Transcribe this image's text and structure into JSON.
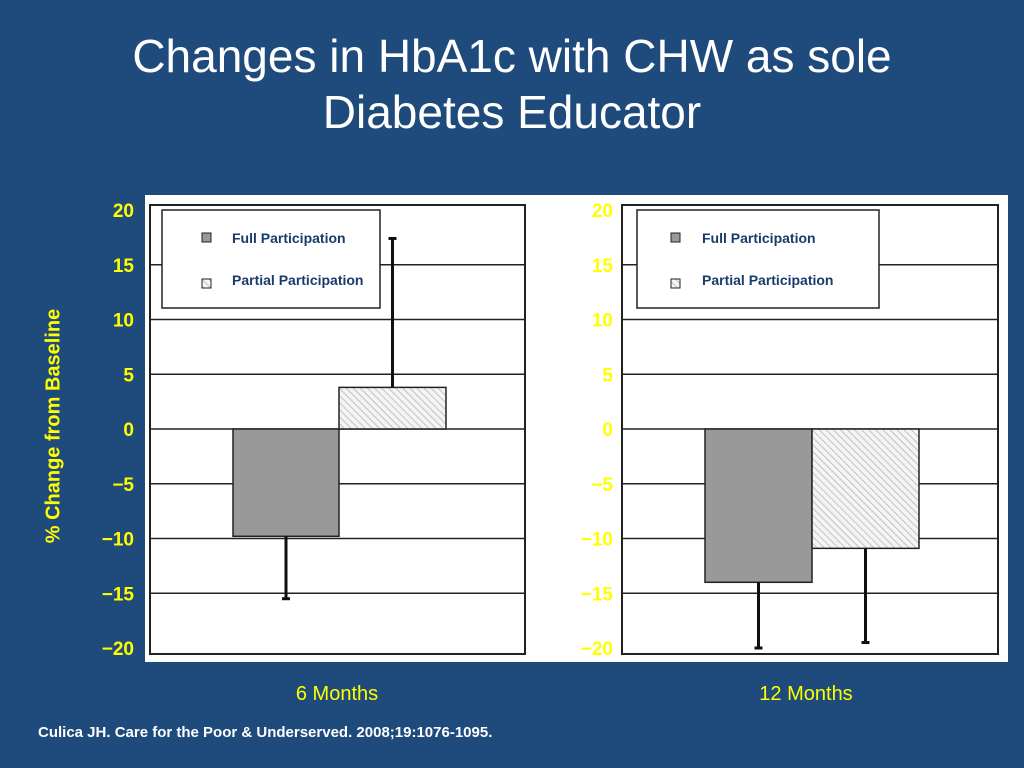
{
  "title_line1": "Changes in HbA1c with CHW as sole",
  "title_line2": "Diabetes Educator",
  "y_axis_label": "% Change from Baseline",
  "citation": "Culica JH. Care for the Poor & Underserved. 2008;19:1076-1095.",
  "colors": {
    "background": "#1f4a7c",
    "title": "#ffffff",
    "axis_text": "#ffff00",
    "full_participation": "#999999",
    "partial_participation": "hatched light gray"
  },
  "chart_data": [
    {
      "type": "bar",
      "xlabel": "6 Months",
      "ylabel": "% Change from Baseline",
      "ylim": [
        -20,
        20
      ],
      "yticks": [
        "20",
        "15",
        "10",
        "5",
        "0",
        "−5",
        "−10",
        "−15",
        "−20"
      ],
      "grid": true,
      "legend_position": "top-left",
      "series": [
        {
          "name": "Full Participation",
          "value": -9.8,
          "error_low": -15.5
        },
        {
          "name": "Partial Participation",
          "value": 3.8,
          "error_high": 17.4
        }
      ]
    },
    {
      "type": "bar",
      "xlabel": "12 Months",
      "ylabel": "% Change from Baseline",
      "ylim": [
        -20,
        20
      ],
      "yticks": [
        "20",
        "15",
        "10",
        "5",
        "0",
        "−5",
        "−10",
        "−15",
        "−20"
      ],
      "grid": true,
      "legend_position": "top-left",
      "series": [
        {
          "name": "Full Participation",
          "value": -14.0,
          "error_low": -20.0
        },
        {
          "name": "Partial Participation",
          "value": -10.9,
          "error_low": -19.5
        }
      ]
    }
  ]
}
